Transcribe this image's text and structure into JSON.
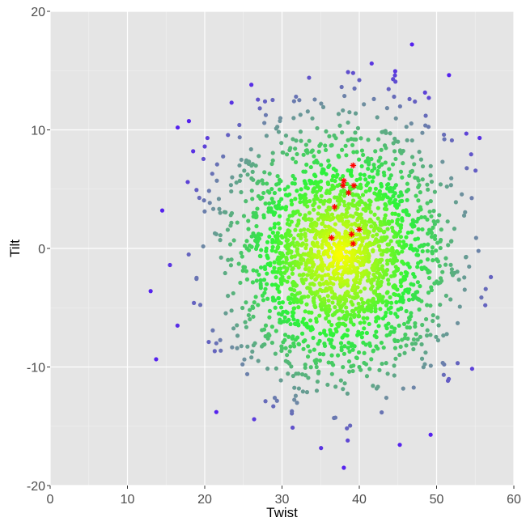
{
  "chart_data": {
    "type": "scatter",
    "title": "",
    "xlabel": "Twist",
    "ylabel": "Tilt",
    "xlim": [
      0,
      60
    ],
    "ylim": [
      -20,
      20
    ],
    "x_ticks": [
      "0",
      "10",
      "20",
      "30",
      "40",
      "50",
      "60"
    ],
    "y_ticks": [
      "-20",
      "-10",
      "0",
      "10",
      "20"
    ],
    "grid": true,
    "legend": "none",
    "colors": {
      "panel_background": "#e5e5e5",
      "grid_major": "#ffffff",
      "grid_minor": "#f2f2f2",
      "density_high": "#ffff00",
      "density_mid": "#2cf33a",
      "density_low": "#6f8fa0",
      "density_lowest": "#5522ee",
      "highlight": "#ff0000"
    },
    "series": [
      {
        "marker": "dot",
        "note_points": "background cloud, color by local density",
        "points": [
          [
            41.6,
            15.6
          ],
          [
            49.0,
            12.7
          ],
          [
            33.5,
            14.4
          ],
          [
            16.5,
            10.2
          ],
          [
            52.5,
            3.9
          ],
          [
            14.5,
            3.2
          ],
          [
            13.0,
            -3.6
          ],
          [
            15.5,
            -1.4
          ],
          [
            21.5,
            -13.8
          ],
          [
            38.0,
            -18.5
          ],
          [
            38.5,
            -16.2
          ],
          [
            51.8,
            -4.3
          ],
          [
            46.5,
            12.6
          ],
          [
            44.5,
            12.8
          ],
          [
            40.0,
            14.2
          ],
          [
            39.2,
            14.8
          ],
          [
            27.8,
            12.4
          ],
          [
            20.0,
            8.6
          ],
          [
            18.5,
            8.2
          ],
          [
            17.8,
            5.6
          ],
          [
            18.6,
            -4.6
          ],
          [
            21.5,
            -8.0
          ],
          [
            25.5,
            -10.6
          ],
          [
            34.5,
            -12.0
          ],
          [
            43.5,
            -12.6
          ],
          [
            47.0,
            -8.5
          ],
          [
            49.5,
            -1.0
          ],
          [
            48.0,
            7.5
          ],
          [
            45.0,
            9.0
          ],
          [
            31.5,
            11.0
          ],
          [
            28.0,
            9.5
          ],
          [
            24.5,
            7.0
          ],
          [
            22.0,
            3.0
          ],
          [
            23.0,
            -4.0
          ],
          [
            26.5,
            -8.0
          ],
          [
            30.5,
            -9.5
          ],
          [
            40.0,
            -10.0
          ],
          [
            44.5,
            -7.0
          ],
          [
            46.0,
            -2.0
          ],
          [
            45.5,
            4.5
          ]
        ]
      },
      {
        "marker": "asterisk",
        "name": "",
        "points": [
          [
            39.2,
            7.0
          ],
          [
            38.0,
            5.7
          ],
          [
            37.9,
            5.3
          ],
          [
            39.3,
            5.3
          ],
          [
            38.6,
            4.7
          ],
          [
            36.8,
            3.5
          ],
          [
            40.0,
            1.6
          ],
          [
            39.0,
            1.2
          ],
          [
            36.4,
            0.9
          ],
          [
            39.2,
            0.4
          ]
        ]
      }
    ]
  }
}
